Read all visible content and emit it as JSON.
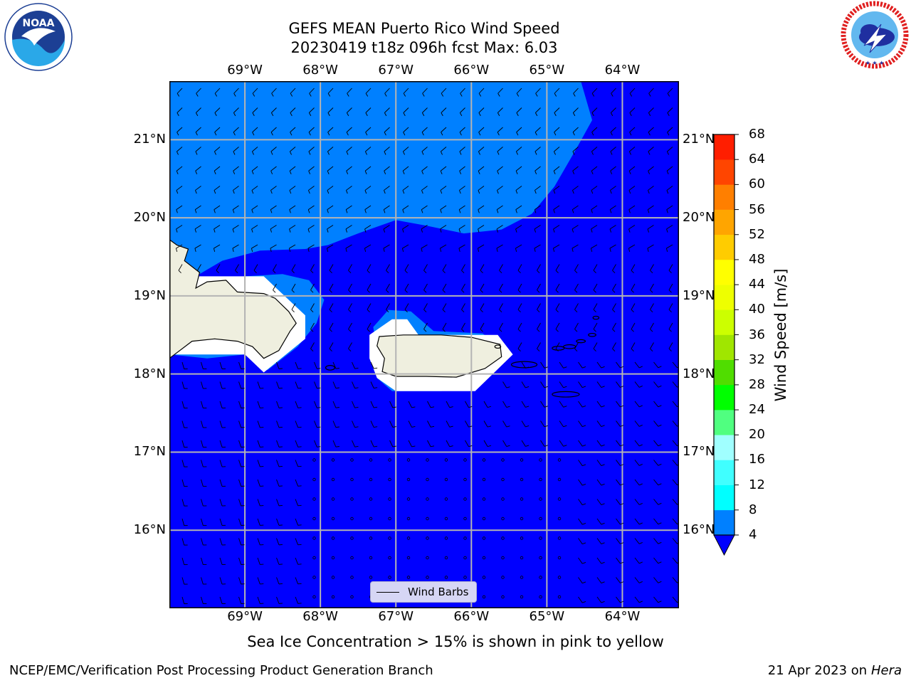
{
  "header": {
    "title_line1": "GEFS MEAN Puerto Rico Wind Speed",
    "title_line2": "20230419 t18z 096h fcst   Max: 6.03"
  },
  "logos": {
    "noaa": {
      "text": "NOAA",
      "ring_text": "NATIONAL OCEANIC AND ATMOSPHERIC ADMINISTRATION · U.S. DEPARTMENT OF COMMERCE"
    },
    "nws": {
      "ring_text": "NATIONAL WEATHER SERVICE"
    }
  },
  "map": {
    "lon_labels": [
      "69°W",
      "68°W",
      "67°W",
      "66°W",
      "65°W",
      "64°W"
    ],
    "lat_labels": [
      "21°N",
      "20°N",
      "19°N",
      "18°N",
      "17°N",
      "16°N"
    ],
    "lon_range": [
      -70.0,
      -63.25
    ],
    "lat_range": [
      15.0,
      21.75
    ],
    "gridlines": true,
    "colors": {
      "wind_0_4": "#0000ff",
      "wind_4_8": "#0080ff",
      "land": "#efefdf",
      "grid": "#b4b4b4"
    },
    "legend_label": "Wind Barbs"
  },
  "colorbar": {
    "title": "Wind Speed [m/s]",
    "ticks": [
      "68",
      "64",
      "60",
      "56",
      "52",
      "48",
      "44",
      "40",
      "36",
      "32",
      "28",
      "24",
      "20",
      "16",
      "12",
      "8",
      "4"
    ],
    "colors_low_to_high": [
      "#0080ff",
      "#00ffff",
      "#40ffff",
      "#a0ffff",
      "#50ff80",
      "#00ff00",
      "#50dd00",
      "#a0e600",
      "#ccff00",
      "#eeff00",
      "#ffff00",
      "#ffcc00",
      "#ffa500",
      "#ff7f00",
      "#ff4500",
      "#ff1e00"
    ],
    "under_color": "#0000ff"
  },
  "note": "Sea Ice Concentration > 15% is shown in pink to yellow",
  "footer": {
    "left": "NCEP/EMC/Verification Post Processing Product Generation Branch",
    "date": "21 Apr 2023 on ",
    "machine": "Hera"
  }
}
